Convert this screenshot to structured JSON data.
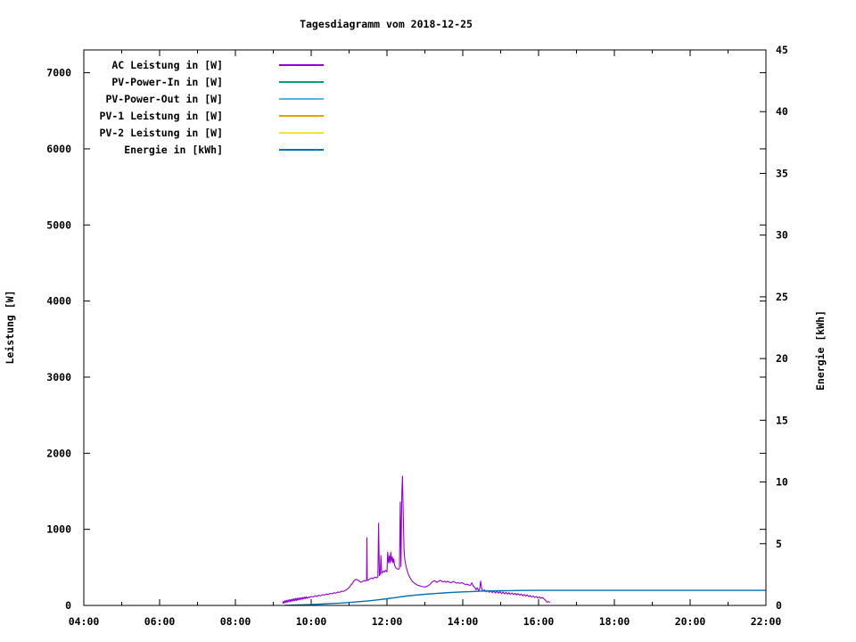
{
  "chart_data": {
    "type": "line",
    "title": "Tagesdiagramm vom 2018-12-25",
    "grid": false,
    "legend_position": "inside top-left",
    "x_axis": {
      "unit": "time of day (HH:MM)",
      "range_hours": [
        4,
        22
      ],
      "major_tick_hours": [
        4,
        6,
        8,
        10,
        12,
        14,
        16,
        18,
        20,
        22
      ],
      "major_tick_labels": [
        "04:00",
        "06:00",
        "08:00",
        "10:00",
        "12:00",
        "14:00",
        "16:00",
        "18:00",
        "20:00",
        "22:00"
      ],
      "minor_tick_hours": [
        5,
        7,
        9,
        11,
        13,
        15,
        17,
        19,
        21
      ]
    },
    "y_axis": {
      "label": "Leistung [W]",
      "range": [
        0,
        7300
      ],
      "ticks": [
        0,
        1000,
        2000,
        3000,
        4000,
        5000,
        6000,
        7000
      ]
    },
    "y2_axis": {
      "label": "Energie [kWh]",
      "range": [
        0,
        45
      ],
      "ticks": [
        0,
        5,
        10,
        15,
        20,
        25,
        30,
        35,
        40,
        45
      ]
    },
    "series": [
      {
        "name": "AC Leistung in [W]",
        "color": "#9400d3",
        "axis": "y",
        "points": [
          [
            9.25,
            25
          ],
          [
            9.27,
            55
          ],
          [
            9.29,
            30
          ],
          [
            9.31,
            62
          ],
          [
            9.33,
            38
          ],
          [
            9.35,
            68
          ],
          [
            9.37,
            42
          ],
          [
            9.39,
            72
          ],
          [
            9.41,
            46
          ],
          [
            9.43,
            76
          ],
          [
            9.45,
            50
          ],
          [
            9.47,
            80
          ],
          [
            9.49,
            55
          ],
          [
            9.51,
            84
          ],
          [
            9.53,
            58
          ],
          [
            9.55,
            88
          ],
          [
            9.57,
            62
          ],
          [
            9.59,
            92
          ],
          [
            9.61,
            66
          ],
          [
            9.63,
            95
          ],
          [
            9.65,
            70
          ],
          [
            9.67,
            98
          ],
          [
            9.69,
            74
          ],
          [
            9.71,
            100
          ],
          [
            9.73,
            78
          ],
          [
            9.75,
            103
          ],
          [
            9.77,
            82
          ],
          [
            9.79,
            106
          ],
          [
            9.81,
            86
          ],
          [
            9.83,
            110
          ],
          [
            9.85,
            90
          ],
          [
            9.87,
            112
          ],
          [
            9.89,
            94
          ],
          [
            9.91,
            108
          ],
          [
            9.93,
            98
          ],
          [
            9.95,
            112
          ],
          [
            9.97,
            104
          ],
          [
            10.0,
            118
          ],
          [
            10.05,
            110
          ],
          [
            10.1,
            126
          ],
          [
            10.15,
            118
          ],
          [
            10.2,
            134
          ],
          [
            10.25,
            126
          ],
          [
            10.3,
            142
          ],
          [
            10.35,
            136
          ],
          [
            10.4,
            150
          ],
          [
            10.45,
            144
          ],
          [
            10.5,
            158
          ],
          [
            10.55,
            152
          ],
          [
            10.6,
            166
          ],
          [
            10.65,
            162
          ],
          [
            10.7,
            176
          ],
          [
            10.75,
            172
          ],
          [
            10.8,
            186
          ],
          [
            10.85,
            184
          ],
          [
            10.9,
            198
          ],
          [
            10.95,
            212
          ],
          [
            11.0,
            235
          ],
          [
            11.05,
            268
          ],
          [
            11.1,
            300
          ],
          [
            11.13,
            325
          ],
          [
            11.16,
            338
          ],
          [
            11.2,
            342
          ],
          [
            11.24,
            332
          ],
          [
            11.28,
            315
          ],
          [
            11.32,
            305
          ],
          [
            11.36,
            318
          ],
          [
            11.4,
            328
          ],
          [
            11.44,
            318
          ],
          [
            11.46,
            330
          ],
          [
            11.47,
            890
          ],
          [
            11.48,
            335
          ],
          [
            11.5,
            328
          ],
          [
            11.53,
            342
          ],
          [
            11.56,
            352
          ],
          [
            11.6,
            362
          ],
          [
            11.63,
            350
          ],
          [
            11.66,
            365
          ],
          [
            11.7,
            372
          ],
          [
            11.73,
            362
          ],
          [
            11.76,
            375
          ],
          [
            11.78,
            1080
          ],
          [
            11.8,
            392
          ],
          [
            11.82,
            410
          ],
          [
            11.84,
            655
          ],
          [
            11.86,
            420
          ],
          [
            11.88,
            438
          ],
          [
            11.9,
            452
          ],
          [
            11.93,
            438
          ],
          [
            11.96,
            462
          ],
          [
            12.0,
            442
          ],
          [
            12.02,
            700
          ],
          [
            12.04,
            560
          ],
          [
            12.06,
            648
          ],
          [
            12.08,
            560
          ],
          [
            12.1,
            700
          ],
          [
            12.12,
            575
          ],
          [
            12.14,
            640
          ],
          [
            12.16,
            560
          ],
          [
            12.18,
            612
          ],
          [
            12.2,
            528
          ],
          [
            12.23,
            498
          ],
          [
            12.26,
            482
          ],
          [
            12.3,
            475
          ],
          [
            12.33,
            490
          ],
          [
            12.35,
            1360
          ],
          [
            12.37,
            512
          ],
          [
            12.39,
            1452
          ],
          [
            12.41,
            1700
          ],
          [
            12.43,
            1180
          ],
          [
            12.45,
            735
          ],
          [
            12.47,
            600
          ],
          [
            12.5,
            520
          ],
          [
            12.53,
            462
          ],
          [
            12.56,
            415
          ],
          [
            12.6,
            372
          ],
          [
            12.64,
            338
          ],
          [
            12.68,
            312
          ],
          [
            12.72,
            295
          ],
          [
            12.76,
            280
          ],
          [
            12.8,
            268
          ],
          [
            12.85,
            260
          ],
          [
            12.9,
            252
          ],
          [
            12.95,
            246
          ],
          [
            13.0,
            242
          ],
          [
            13.05,
            250
          ],
          [
            13.1,
            264
          ],
          [
            13.15,
            286
          ],
          [
            13.2,
            312
          ],
          [
            13.25,
            326
          ],
          [
            13.28,
            318
          ],
          [
            13.32,
            302
          ],
          [
            13.36,
            316
          ],
          [
            13.4,
            330
          ],
          [
            13.44,
            322
          ],
          [
            13.48,
            308
          ],
          [
            13.52,
            320
          ],
          [
            13.56,
            305
          ],
          [
            13.6,
            318
          ],
          [
            13.64,
            308
          ],
          [
            13.68,
            296
          ],
          [
            13.72,
            306
          ],
          [
            13.76,
            315
          ],
          [
            13.8,
            302
          ],
          [
            13.84,
            292
          ],
          [
            13.88,
            300
          ],
          [
            13.92,
            290
          ],
          [
            13.96,
            298
          ],
          [
            14.0,
            294
          ],
          [
            14.04,
            282
          ],
          [
            14.08,
            272
          ],
          [
            14.12,
            280
          ],
          [
            14.16,
            268
          ],
          [
            14.2,
            262
          ],
          [
            14.24,
            296
          ],
          [
            14.28,
            252
          ],
          [
            14.32,
            238
          ],
          [
            14.35,
            205
          ],
          [
            14.38,
            232
          ],
          [
            14.42,
            196
          ],
          [
            14.45,
            225
          ],
          [
            14.47,
            320
          ],
          [
            14.5,
            215
          ],
          [
            14.54,
            186
          ],
          [
            14.58,
            206
          ],
          [
            14.62,
            178
          ],
          [
            14.66,
            198
          ],
          [
            14.7,
            172
          ],
          [
            14.74,
            194
          ],
          [
            14.78,
            168
          ],
          [
            14.82,
            190
          ],
          [
            14.86,
            164
          ],
          [
            14.9,
            186
          ],
          [
            14.94,
            160
          ],
          [
            14.98,
            182
          ],
          [
            15.02,
            156
          ],
          [
            15.06,
            176
          ],
          [
            15.1,
            152
          ],
          [
            15.14,
            172
          ],
          [
            15.18,
            148
          ],
          [
            15.22,
            168
          ],
          [
            15.26,
            146
          ],
          [
            15.3,
            164
          ],
          [
            15.34,
            142
          ],
          [
            15.38,
            160
          ],
          [
            15.42,
            138
          ],
          [
            15.46,
            156
          ],
          [
            15.5,
            134
          ],
          [
            15.54,
            150
          ],
          [
            15.58,
            128
          ],
          [
            15.62,
            144
          ],
          [
            15.66,
            122
          ],
          [
            15.7,
            138
          ],
          [
            15.74,
            116
          ],
          [
            15.78,
            130
          ],
          [
            15.82,
            110
          ],
          [
            15.86,
            124
          ],
          [
            15.9,
            104
          ],
          [
            15.94,
            118
          ],
          [
            15.98,
            98
          ],
          [
            16.02,
            112
          ],
          [
            16.06,
            92
          ],
          [
            16.1,
            106
          ],
          [
            16.14,
            86
          ],
          [
            16.18,
            70
          ],
          [
            16.2,
            55
          ],
          [
            16.22,
            42
          ],
          [
            16.26,
            50
          ],
          [
            16.3,
            40
          ]
        ]
      },
      {
        "name": "PV-Power-In in [W]",
        "color": "#009e73",
        "axis": "y",
        "points": []
      },
      {
        "name": "PV-Power-Out in [W]",
        "color": "#56b4e9",
        "axis": "y",
        "points": []
      },
      {
        "name": "PV-1 Leistung in [W]",
        "color": "#e69f00",
        "axis": "y",
        "points": []
      },
      {
        "name": "PV-2 Leistung in [W]",
        "color": "#f0e442",
        "axis": "y",
        "points": []
      },
      {
        "name": "Energie in [kWh]",
        "color": "#0072b2",
        "axis": "y2",
        "points": [
          [
            9.3,
            0.01
          ],
          [
            9.5,
            0.03
          ],
          [
            9.75,
            0.05
          ],
          [
            10.0,
            0.08
          ],
          [
            10.25,
            0.11
          ],
          [
            10.5,
            0.15
          ],
          [
            10.75,
            0.19
          ],
          [
            11.0,
            0.24
          ],
          [
            11.25,
            0.3
          ],
          [
            11.5,
            0.37
          ],
          [
            11.75,
            0.45
          ],
          [
            12.0,
            0.54
          ],
          [
            12.25,
            0.64
          ],
          [
            12.5,
            0.76
          ],
          [
            12.75,
            0.84
          ],
          [
            13.0,
            0.9
          ],
          [
            13.25,
            0.96
          ],
          [
            13.5,
            1.01
          ],
          [
            13.75,
            1.06
          ],
          [
            14.0,
            1.1
          ],
          [
            14.25,
            1.13
          ],
          [
            14.5,
            1.16
          ],
          [
            14.75,
            1.18
          ],
          [
            15.0,
            1.19
          ],
          [
            15.25,
            1.2
          ],
          [
            15.5,
            1.21
          ],
          [
            16.0,
            1.22
          ],
          [
            16.5,
            1.22
          ],
          [
            22.0,
            1.22
          ]
        ]
      }
    ]
  }
}
